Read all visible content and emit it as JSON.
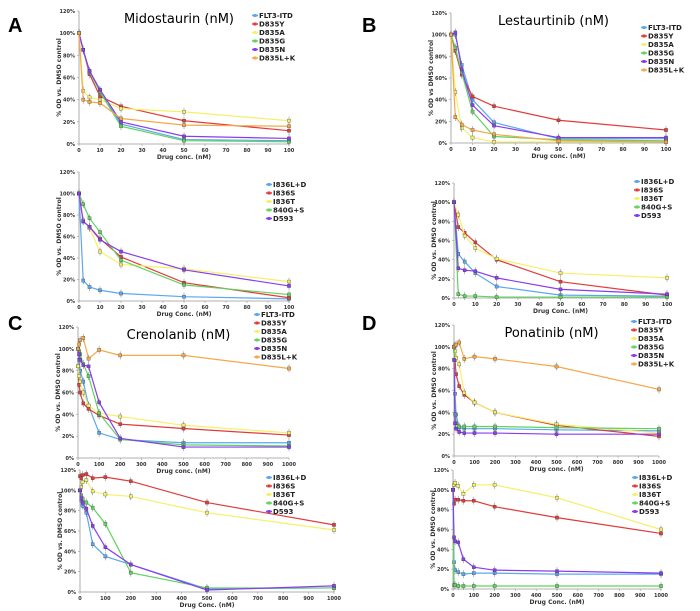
{
  "panel_labels": [
    "A",
    "B",
    "C",
    "D"
  ],
  "colors": {
    "FLT3-ITD": "#5aa8f0",
    "D835Y": "#e23b3b",
    "D835A": "#f5f06a",
    "D835G": "#5fd35f",
    "D835N": "#8a3cf0",
    "D835L+K": "#f5a84a",
    "I836L+D": "#5aa8f0",
    "I836S": "#e23b3b",
    "I836T": "#f5f06a",
    "840G+S": "#5fd35f",
    "D593": "#8a3cf0"
  },
  "chart_data": [
    {
      "type": "line",
      "panel": "A",
      "position": "top",
      "title": "Midostaurin (nM)",
      "xlabel": "Drug conc. (nM)",
      "ylabel": "% OD vs. DMSO control",
      "xlim": [
        0,
        100
      ],
      "ylim": [
        0,
        120
      ],
      "xticks": [
        0,
        10,
        20,
        30,
        40,
        50,
        60,
        70,
        80,
        90,
        100
      ],
      "yticks": [
        "0%",
        "20%",
        "40%",
        "60%",
        "80%",
        "100%",
        "120%"
      ],
      "legend": "top-right",
      "x": [
        0,
        2,
        5,
        10,
        20,
        50,
        100
      ],
      "series": [
        {
          "name": "FLT3-ITD",
          "values": [
            100,
            85,
            65,
            48,
            18,
            4,
            3
          ]
        },
        {
          "name": "D835Y",
          "values": [
            100,
            85,
            63,
            43,
            34,
            21,
            12
          ]
        },
        {
          "name": "D835A",
          "values": [
            100,
            48,
            42,
            40,
            32,
            29,
            21
          ]
        },
        {
          "name": "D835G",
          "values": [
            100,
            85,
            65,
            47,
            16,
            3,
            2
          ]
        },
        {
          "name": "D835N",
          "values": [
            100,
            85,
            66,
            49,
            20,
            7,
            5
          ]
        },
        {
          "name": "D835L+K",
          "values": [
            100,
            40,
            38,
            37,
            23,
            17,
            16
          ]
        }
      ]
    },
    {
      "type": "line",
      "panel": "A",
      "position": "bottom",
      "title": "",
      "xlabel": "Drug Conc. (nM)",
      "ylabel": "% OD vs. DMSO control",
      "xlim": [
        0,
        100
      ],
      "ylim": [
        0,
        120
      ],
      "xticks": [
        0,
        10,
        20,
        30,
        40,
        50,
        60,
        70,
        80,
        90,
        100
      ],
      "yticks": [
        "0%",
        "20%",
        "40%",
        "60%",
        "80%",
        "100%",
        "120%"
      ],
      "legend": "top-right",
      "x": [
        0,
        2,
        5,
        10,
        20,
        50,
        100
      ],
      "series": [
        {
          "name": "I836L+D",
          "values": [
            100,
            19,
            13,
            10,
            7,
            4,
            2
          ]
        },
        {
          "name": "I836S",
          "values": [
            100,
            74,
            69,
            58,
            41,
            17,
            3
          ]
        },
        {
          "name": "I836T",
          "values": [
            100,
            75,
            68,
            46,
            34,
            30,
            18
          ]
        },
        {
          "name": "840G+S",
          "values": [
            100,
            90,
            77,
            64,
            38,
            15,
            6
          ]
        },
        {
          "name": "D593",
          "values": [
            100,
            74,
            69,
            57,
            46,
            29,
            14
          ]
        }
      ]
    },
    {
      "type": "line",
      "panel": "B",
      "position": "top",
      "title": "Lestaurtinib (nM)",
      "xlabel": "Drug conc. (nM)",
      "ylabel": "% OD vs DMSO control",
      "xlim": [
        0,
        100
      ],
      "ylim": [
        0,
        120
      ],
      "xticks": [
        0,
        10,
        20,
        30,
        40,
        50,
        60,
        70,
        80,
        90,
        100
      ],
      "yticks": [
        "0%",
        "20%",
        "40%",
        "60%",
        "80%",
        "100%",
        "120%"
      ],
      "legend": "top-right",
      "x": [
        0,
        2,
        5,
        10,
        20,
        50,
        100
      ],
      "series": [
        {
          "name": "FLT3-ITD",
          "values": [
            100,
            100,
            72,
            40,
            19,
            4,
            4
          ]
        },
        {
          "name": "D835Y",
          "values": [
            100,
            85,
            63,
            43,
            34,
            21,
            12
          ]
        },
        {
          "name": "D835A",
          "values": [
            100,
            47,
            14,
            5,
            1,
            1,
            1
          ]
        },
        {
          "name": "D835G",
          "values": [
            100,
            88,
            65,
            29,
            6,
            3,
            2
          ]
        },
        {
          "name": "D835N",
          "values": [
            100,
            102,
            68,
            35,
            16,
            5,
            5
          ]
        },
        {
          "name": "D835L+K",
          "values": [
            100,
            24,
            17,
            12,
            8,
            2,
            1
          ]
        }
      ]
    },
    {
      "type": "line",
      "panel": "B",
      "position": "bottom",
      "title": "",
      "xlabel": "Drug Conc. (nM)",
      "ylabel": "% OD vs. DMSO control",
      "xlim": [
        0,
        100
      ],
      "ylim": [
        0,
        120
      ],
      "xticks": [
        0,
        10,
        20,
        30,
        40,
        50,
        60,
        70,
        80,
        90,
        100
      ],
      "yticks": [
        "0%",
        "20%",
        "40%",
        "60%",
        "80%",
        "100%",
        "120%"
      ],
      "legend": "top-right",
      "x": [
        0,
        2,
        5,
        10,
        20,
        50,
        100
      ],
      "series": [
        {
          "name": "I836L+D",
          "values": [
            100,
            46,
            38,
            26,
            12,
            3,
            2
          ]
        },
        {
          "name": "I836S",
          "values": [
            100,
            74,
            68,
            58,
            40,
            17,
            3
          ]
        },
        {
          "name": "I836T",
          "values": [
            100,
            87,
            65,
            52,
            41,
            26,
            21
          ]
        },
        {
          "name": "840G+S",
          "values": [
            100,
            4,
            2,
            2,
            1,
            1,
            1
          ]
        },
        {
          "name": "D593",
          "values": [
            100,
            31,
            29,
            28,
            21,
            9,
            4
          ]
        }
      ]
    },
    {
      "type": "line",
      "panel": "C",
      "position": "top",
      "title": "Crenolanib (nM)",
      "xlabel": "Drug conc. (nM)",
      "ylabel": "% OD vs. DMSO control",
      "xlim": [
        0,
        1000
      ],
      "ylim": [
        0,
        120
      ],
      "xticks": [
        0,
        100,
        200,
        300,
        400,
        500,
        600,
        700,
        800,
        900,
        1000
      ],
      "yticks": [
        "0%",
        "20%",
        "40%",
        "60%",
        "80%",
        "100%",
        "120%"
      ],
      "legend": "top-right",
      "x": [
        0,
        5,
        10,
        25,
        50,
        100,
        200,
        500,
        1000
      ],
      "series": [
        {
          "name": "FLT3-ITD",
          "values": [
            100,
            90,
            80,
            70,
            48,
            23,
            17,
            14,
            14
          ]
        },
        {
          "name": "D835Y",
          "values": [
            84,
            67,
            60,
            50,
            45,
            39,
            31,
            27,
            21
          ]
        },
        {
          "name": "D835A",
          "values": [
            84,
            75,
            70,
            60,
            48,
            41,
            38,
            30,
            23
          ]
        },
        {
          "name": "D835G",
          "values": [
            100,
            98,
            95,
            86,
            75,
            41,
            17,
            12,
            11
          ]
        },
        {
          "name": "D835N",
          "values": [
            100,
            95,
            90,
            85,
            84,
            51,
            18,
            10,
            10
          ]
        },
        {
          "name": "D835L+K",
          "values": [
            100,
            104,
            108,
            110,
            91,
            99,
            94,
            94,
            82
          ]
        }
      ]
    },
    {
      "type": "line",
      "panel": "C",
      "position": "bottom",
      "title": "",
      "xlabel": "Drug Conc. (nM)",
      "ylabel": "% OD vs. DMSO control",
      "xlim": [
        0,
        1000
      ],
      "ylim": [
        0,
        120
      ],
      "xticks": [
        0,
        100,
        200,
        300,
        400,
        500,
        600,
        700,
        800,
        900,
        1000
      ],
      "yticks": [
        "0%",
        "20%",
        "40%",
        "60%",
        "80%",
        "100%",
        "120%"
      ],
      "legend": "top-right",
      "x": [
        0,
        5,
        10,
        25,
        50,
        100,
        200,
        500,
        1000
      ],
      "series": [
        {
          "name": "I836L+D",
          "values": [
            100,
            90,
            85,
            78,
            47,
            35,
            27,
            3,
            4
          ]
        },
        {
          "name": "I836S",
          "values": [
            114,
            112,
            115,
            116,
            112,
            113,
            109,
            88,
            66
          ]
        },
        {
          "name": "I836T",
          "values": [
            100,
            103,
            108,
            110,
            99,
            96,
            94,
            78,
            61
          ]
        },
        {
          "name": "840G+S",
          "values": [
            100,
            95,
            92,
            88,
            83,
            67,
            19,
            4,
            4
          ]
        },
        {
          "name": "D593",
          "values": [
            100,
            92,
            88,
            82,
            65,
            44,
            27,
            2,
            6
          ]
        }
      ]
    },
    {
      "type": "line",
      "panel": "D",
      "position": "top",
      "title": "Ponatinib (nM)",
      "xlabel": "Drug conc. (nM)",
      "ylabel": "% OD vs. DMSO control",
      "xlim": [
        0,
        1000
      ],
      "ylim": [
        0,
        120
      ],
      "xticks": [
        0,
        100,
        200,
        300,
        400,
        500,
        600,
        700,
        800,
        900,
        1000
      ],
      "yticks": [
        "0%",
        "20%",
        "40%",
        "60%",
        "80%",
        "100%",
        "120%"
      ],
      "legend": "top-right",
      "x": [
        0,
        5,
        10,
        25,
        50,
        100,
        200,
        500,
        1000
      ],
      "series": [
        {
          "name": "FLT3-ITD",
          "values": [
            100,
            57,
            38,
            26,
            25,
            25,
            25,
            24,
            23
          ]
        },
        {
          "name": "D835Y",
          "values": [
            100,
            88,
            75,
            64,
            56,
            49,
            40,
            28,
            18
          ]
        },
        {
          "name": "D835A",
          "values": [
            100,
            96,
            90,
            84,
            58,
            49,
            40,
            29,
            21
          ]
        },
        {
          "name": "D835G",
          "values": [
            100,
            38,
            30,
            27,
            27,
            27,
            27,
            26,
            25
          ]
        },
        {
          "name": "D835N",
          "values": [
            88,
            30,
            25,
            22,
            21,
            21,
            21,
            20,
            20
          ]
        },
        {
          "name": "D835L+K",
          "values": [
            100,
            101,
            102,
            104,
            89,
            91,
            89,
            82,
            61
          ]
        }
      ]
    },
    {
      "type": "line",
      "panel": "D",
      "position": "bottom",
      "title": "",
      "xlabel": "Drug Conc. (nM)",
      "ylabel": "% OD vs. DMSO control",
      "xlim": [
        0,
        1000
      ],
      "ylim": [
        0,
        120
      ],
      "xticks": [
        0,
        100,
        200,
        300,
        400,
        500,
        600,
        700,
        800,
        900,
        1000
      ],
      "yticks": [
        "0%",
        "20%",
        "40%",
        "60%",
        "80%",
        "100%",
        "120%"
      ],
      "legend": "top-right",
      "x": [
        0,
        5,
        10,
        25,
        50,
        100,
        200,
        500,
        1000
      ],
      "series": [
        {
          "name": "I836L+D",
          "values": [
            100,
            27,
            19,
            17,
            15,
            16,
            16,
            15,
            15
          ]
        },
        {
          "name": "I836S",
          "values": [
            100,
            86,
            90,
            90,
            89,
            89,
            83,
            72,
            56
          ]
        },
        {
          "name": "I836T",
          "values": [
            100,
            105,
            107,
            104,
            96,
            105,
            105,
            92,
            60
          ]
        },
        {
          "name": "840G+S",
          "values": [
            100,
            4,
            4,
            3,
            3,
            3,
            3,
            3,
            3
          ]
        },
        {
          "name": "D593",
          "values": [
            100,
            52,
            48,
            47,
            30,
            22,
            19,
            18,
            16
          ]
        }
      ]
    }
  ]
}
